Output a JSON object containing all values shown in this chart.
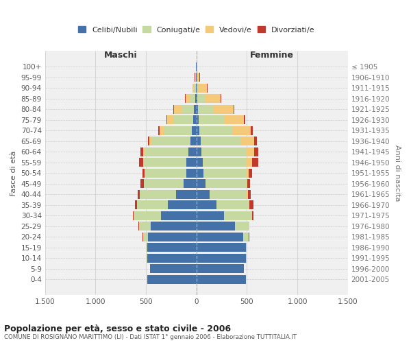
{
  "age_groups": [
    "0-4",
    "5-9",
    "10-14",
    "15-19",
    "20-24",
    "25-29",
    "30-34",
    "35-39",
    "40-44",
    "45-49",
    "50-54",
    "55-59",
    "60-64",
    "65-69",
    "70-74",
    "75-79",
    "80-84",
    "85-89",
    "90-94",
    "95-99",
    "100+"
  ],
  "birth_years": [
    "2001-2005",
    "1996-2000",
    "1991-1995",
    "1986-1990",
    "1981-1985",
    "1976-1980",
    "1971-1975",
    "1966-1970",
    "1961-1965",
    "1956-1960",
    "1951-1955",
    "1946-1950",
    "1941-1945",
    "1936-1940",
    "1931-1935",
    "1926-1930",
    "1921-1925",
    "1916-1920",
    "1911-1915",
    "1906-1910",
    "≤ 1905"
  ],
  "maschi": {
    "celibi": [
      490,
      460,
      490,
      490,
      480,
      450,
      350,
      280,
      200,
      130,
      100,
      100,
      80,
      60,
      45,
      30,
      25,
      10,
      5,
      2,
      2
    ],
    "coniugati": [
      0,
      2,
      5,
      10,
      50,
      120,
      270,
      310,
      360,
      390,
      410,
      420,
      430,
      380,
      280,
      200,
      120,
      50,
      15,
      5,
      2
    ],
    "vedovi": [
      0,
      0,
      0,
      0,
      0,
      0,
      1,
      1,
      2,
      3,
      5,
      10,
      15,
      25,
      40,
      60,
      80,
      50,
      20,
      8,
      2
    ],
    "divorziati": [
      0,
      0,
      0,
      0,
      2,
      5,
      10,
      15,
      20,
      30,
      20,
      40,
      30,
      18,
      12,
      10,
      5,
      3,
      2,
      1,
      0
    ]
  },
  "femmine": {
    "nubili": [
      490,
      470,
      490,
      490,
      460,
      380,
      270,
      200,
      130,
      90,
      70,
      60,
      50,
      40,
      30,
      20,
      15,
      8,
      5,
      2,
      2
    ],
    "coniugate": [
      0,
      2,
      5,
      10,
      60,
      140,
      280,
      320,
      370,
      400,
      420,
      440,
      440,
      400,
      330,
      250,
      150,
      80,
      20,
      5,
      2
    ],
    "vedove": [
      0,
      0,
      0,
      0,
      0,
      1,
      2,
      3,
      8,
      15,
      30,
      50,
      80,
      130,
      180,
      200,
      200,
      150,
      80,
      25,
      2
    ],
    "divorziate": [
      0,
      0,
      0,
      0,
      2,
      5,
      15,
      45,
      30,
      25,
      30,
      60,
      40,
      30,
      20,
      15,
      8,
      5,
      3,
      2,
      0
    ]
  },
  "colors": {
    "celibi": "#4472a8",
    "coniugati": "#c5d9a0",
    "vedovi": "#f5c97a",
    "divorziati": "#c0392b"
  },
  "title": "Popolazione per età, sesso e stato civile - 2006",
  "subtitle": "COMUNE DI ROSIGNANO MARITTIMO (LI) - Dati ISTAT 1° gennaio 2006 - Elaborazione TUTTITALIA.IT",
  "xlim": 1500,
  "xlabel_maschi": "Maschi",
  "xlabel_femmine": "Femmine",
  "ylabel_left": "Fasce di età",
  "ylabel_right": "Anni di nascita",
  "legend_labels": [
    "Celibi/Nubili",
    "Coniugati/e",
    "Vedovi/e",
    "Divorziati/e"
  ],
  "xtick_labels": [
    "1.500",
    "1.000",
    "500",
    "0",
    "500",
    "1.000",
    "1.500"
  ],
  "xtick_values": [
    -1500,
    -1000,
    -500,
    0,
    500,
    1000,
    1500
  ],
  "background_color": "#ffffff",
  "plot_bg_color": "#f0f0f0"
}
